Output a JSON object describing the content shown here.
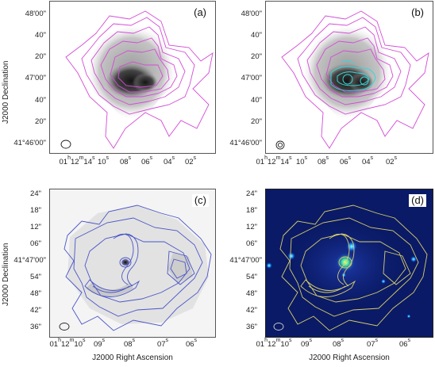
{
  "figure": {
    "panels": [
      {
        "label": "(a)",
        "ylabel": "J2000 Declination",
        "xlabel": "",
        "yticks": [
          "48'00\"",
          "40\"",
          "20\"",
          "47'00\"",
          "40\"",
          "20\"",
          "41°46'00\""
        ],
        "xticks": [
          "01h12m14s",
          "10s",
          "08s",
          "06s",
          "04s",
          "02s"
        ],
        "contour_color": "#d44bd6",
        "background": "greyscale"
      },
      {
        "label": "(b)",
        "ylabel": "",
        "xlabel": "",
        "yticks": [
          "48'00\"",
          "40\"",
          "20\"",
          "47'00\"",
          "40\"",
          "20\"",
          "41°46'00\""
        ],
        "xticks": [
          "01h12m14s",
          "10s",
          "08s",
          "06s",
          "04s",
          "02s"
        ],
        "contour_color": "#d44bd6",
        "overlay_color": "#38d8d8",
        "background": "greyscale"
      },
      {
        "label": "(c)",
        "ylabel": "J2000 Declination",
        "xlabel": "J2000 Right Ascension",
        "yticks": [
          "24\"",
          "18\"",
          "12\"",
          "06\"",
          "41°47'00\"",
          "54\"",
          "48\"",
          "42\"",
          "36\""
        ],
        "xticks": [
          "01h12m10s",
          "09s",
          "08s",
          "07s",
          "06s"
        ],
        "contour_color": "#4a55c8",
        "background": "greyscale"
      },
      {
        "label": "(d)",
        "ylabel": "",
        "xlabel": "J2000 Right Ascension",
        "yticks": [
          "24\"",
          "18\"",
          "12\"",
          "06\"",
          "41°47'00\"",
          "54\"",
          "48\"",
          "42\"",
          "36\""
        ],
        "xticks": [
          "01h12m10s",
          "09s",
          "08s",
          "07s",
          "06s"
        ],
        "contour_color": "#d8cf6a",
        "background": "#0a1a66"
      }
    ]
  }
}
